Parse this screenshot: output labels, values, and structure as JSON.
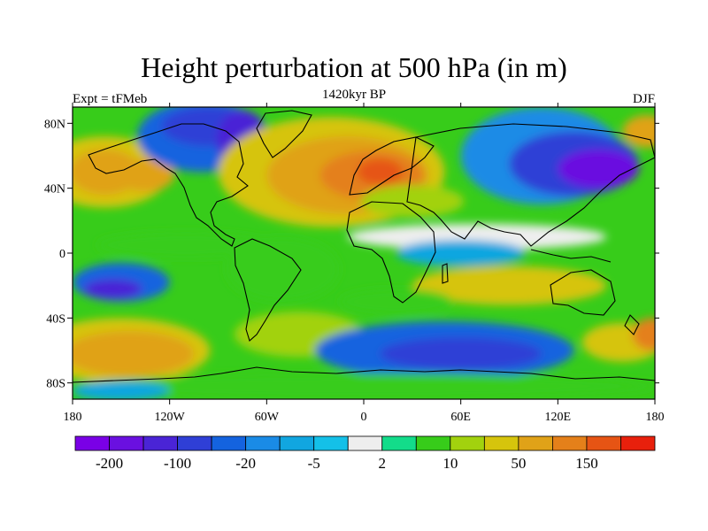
{
  "title": "Height perturbation at 500 hPa (in m)",
  "subtitle_left": "Expt = tFMeb",
  "subtitle_center": "1420kyr BP",
  "subtitle_right": "DJF",
  "chart_data": {
    "type": "heatmap",
    "projection": "cylindrical equidistant",
    "x_ticks": [
      {
        "value": -180,
        "label": "180"
      },
      {
        "value": -120,
        "label": "120W"
      },
      {
        "value": -60,
        "label": "60W"
      },
      {
        "value": 0,
        "label": "0"
      },
      {
        "value": 60,
        "label": "60E"
      },
      {
        "value": 120,
        "label": "120E"
      },
      {
        "value": 180,
        "label": "180"
      }
    ],
    "y_ticks": [
      {
        "value": 80,
        "label": "80N"
      },
      {
        "value": 40,
        "label": "40N"
      },
      {
        "value": 0,
        "label": "0"
      },
      {
        "value": -40,
        "label": "40S"
      },
      {
        "value": -80,
        "label": "80S"
      }
    ],
    "xlim": [
      -180,
      180
    ],
    "ylim": [
      -90,
      90
    ],
    "colorbar": {
      "colors": [
        "#7a00e6",
        "#6a10e0",
        "#4a24d6",
        "#2f3fd6",
        "#1463df",
        "#1a8be6",
        "#11a6e0",
        "#14c0e8",
        "#eeeeee",
        "#13dc8a",
        "#37cc1a",
        "#a2d20e",
        "#d6c40c",
        "#e0a218",
        "#e4801a",
        "#e65414",
        "#e8200c"
      ],
      "tick_labels": [
        {
          "boundary": 1,
          "label": "-200"
        },
        {
          "boundary": 3,
          "label": "-100"
        },
        {
          "boundary": 5,
          "label": "-20"
        },
        {
          "boundary": 7,
          "label": "-5"
        },
        {
          "boundary": 9,
          "label": "2"
        },
        {
          "boundary": 11,
          "label": "10"
        },
        {
          "boundary": 13,
          "label": "50"
        },
        {
          "boundary": 15,
          "label": "150"
        }
      ]
    },
    "regions": [
      {
        "lon": -160,
        "lat": 50,
        "rlon": 40,
        "rlat": 22,
        "level": 12
      },
      {
        "lon": -160,
        "lat": 50,
        "rlon": 22,
        "rlat": 14,
        "level": 13
      },
      {
        "lon": -135,
        "lat": 48,
        "rlon": 18,
        "rlat": 10,
        "level": 13
      },
      {
        "lon": -100,
        "lat": 72,
        "rlon": 40,
        "rlat": 22,
        "level": 4
      },
      {
        "lon": -95,
        "lat": 78,
        "rlon": 30,
        "rlat": 12,
        "level": 3
      },
      {
        "lon": -75,
        "lat": 70,
        "rlon": 16,
        "rlat": 18,
        "level": 2
      },
      {
        "lon": -20,
        "lat": 50,
        "rlon": 70,
        "rlat": 34,
        "level": 12
      },
      {
        "lon": -10,
        "lat": 48,
        "rlon": 50,
        "rlat": 24,
        "level": 13
      },
      {
        "lon": 5,
        "lat": 48,
        "rlon": 32,
        "rlat": 15,
        "level": 14
      },
      {
        "lon": 10,
        "lat": 50,
        "rlon": 14,
        "rlat": 8,
        "level": 15
      },
      {
        "lon": 30,
        "lat": 32,
        "rlon": 32,
        "rlat": 10,
        "level": 11
      },
      {
        "lon": 110,
        "lat": 60,
        "rlon": 50,
        "rlat": 30,
        "level": 5
      },
      {
        "lon": 130,
        "lat": 55,
        "rlon": 40,
        "rlat": 20,
        "level": 3
      },
      {
        "lon": 145,
        "lat": 52,
        "rlon": 25,
        "rlat": 12,
        "level": 1
      },
      {
        "lon": 175,
        "lat": 75,
        "rlon": 15,
        "rlat": 10,
        "level": 13
      },
      {
        "lon": -110,
        "lat": 5,
        "rlon": 55,
        "rlat": 8,
        "level": 10
      },
      {
        "lon": -50,
        "lat": -10,
        "rlon": 35,
        "rlat": 20,
        "level": 10
      },
      {
        "lon": 70,
        "lat": 10,
        "rlon": 80,
        "rlat": 8,
        "level": 8
      },
      {
        "lon": 60,
        "lat": 0,
        "rlon": 40,
        "rlat": 8,
        "level": 6
      },
      {
        "lon": -150,
        "lat": -18,
        "rlon": 30,
        "rlat": 12,
        "level": 4
      },
      {
        "lon": -155,
        "lat": -22,
        "rlon": 18,
        "rlat": 6,
        "level": 2
      },
      {
        "lon": 90,
        "lat": -20,
        "rlon": 60,
        "rlat": 12,
        "level": 12
      },
      {
        "lon": 20,
        "lat": -30,
        "rlon": 35,
        "rlat": 8,
        "level": 10
      },
      {
        "lon": -150,
        "lat": -60,
        "rlon": 55,
        "rlat": 20,
        "level": 12
      },
      {
        "lon": -145,
        "lat": -62,
        "rlon": 40,
        "rlat": 14,
        "level": 13
      },
      {
        "lon": -40,
        "lat": -50,
        "rlon": 40,
        "rlat": 14,
        "level": 11
      },
      {
        "lon": 50,
        "lat": -60,
        "rlon": 80,
        "rlat": 18,
        "level": 4
      },
      {
        "lon": 60,
        "lat": -62,
        "rlon": 50,
        "rlat": 10,
        "level": 3
      },
      {
        "lon": 160,
        "lat": -55,
        "rlon": 25,
        "rlat": 12,
        "level": 12
      },
      {
        "lon": 178,
        "lat": -50,
        "rlon": 12,
        "rlat": 10,
        "level": 14
      },
      {
        "lon": 0,
        "lat": -82,
        "rlon": 180,
        "rlat": 8,
        "level": 10
      },
      {
        "lon": -150,
        "lat": -85,
        "rlon": 30,
        "rlat": 6,
        "level": 6
      }
    ]
  }
}
